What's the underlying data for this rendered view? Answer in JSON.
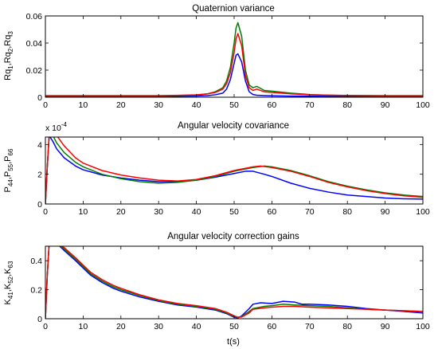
{
  "chart_data": [
    {
      "type": "line",
      "title": "Quaternion variance",
      "ylabel": "Rq1,Rq2,Rq3",
      "ylabel_parts": [
        "Rq",
        "1",
        ",Rq",
        "2",
        ",Rq",
        "3"
      ],
      "xlabel": "",
      "xlim": [
        0,
        100
      ],
      "ylim": [
        0,
        0.06
      ],
      "xticks": [
        "0",
        "10",
        "20",
        "30",
        "40",
        "50",
        "60",
        "70",
        "80",
        "90",
        "100"
      ],
      "yticks": [
        "0",
        "0.02",
        "0.04",
        "0.06"
      ],
      "ytick_values": [
        0,
        0.02,
        0.04,
        0.06
      ],
      "grid": false,
      "series": [
        {
          "color": "#0000ff",
          "x": [
            0,
            10,
            20,
            30,
            35,
            40,
            43,
            45,
            47,
            48,
            49,
            50,
            50.5,
            51,
            52,
            53,
            54,
            55,
            56,
            58,
            60,
            65,
            70,
            80,
            90,
            100
          ],
          "y": [
            0.0006,
            0.0006,
            0.0006,
            0.0006,
            0.0007,
            0.0009,
            0.0012,
            0.0018,
            0.003,
            0.006,
            0.013,
            0.025,
            0.031,
            0.032,
            0.026,
            0.012,
            0.004,
            0.002,
            0.0015,
            0.0012,
            0.001,
            0.0008,
            0.0007,
            0.0006,
            0.0006,
            0.0006
          ]
        },
        {
          "color": "#007f00",
          "x": [
            0,
            10,
            20,
            30,
            35,
            40,
            43,
            45,
            47,
            48,
            49,
            50,
            50.5,
            51,
            52,
            53,
            54,
            55,
            56,
            58,
            60,
            65,
            70,
            75,
            80,
            90,
            100
          ],
          "y": [
            0.001,
            0.001,
            0.001,
            0.001,
            0.0012,
            0.0016,
            0.0025,
            0.004,
            0.007,
            0.012,
            0.022,
            0.04,
            0.051,
            0.055,
            0.045,
            0.02,
            0.009,
            0.007,
            0.008,
            0.005,
            0.0045,
            0.003,
            0.002,
            0.0015,
            0.0012,
            0.001,
            0.001
          ]
        },
        {
          "color": "#ff0000",
          "x": [
            0,
            10,
            20,
            30,
            35,
            40,
            43,
            45,
            47,
            48,
            49,
            50,
            50.5,
            51,
            52,
            53,
            54,
            55,
            56,
            58,
            60,
            65,
            70,
            80,
            90,
            100
          ],
          "y": [
            0.0012,
            0.0012,
            0.0012,
            0.0012,
            0.0014,
            0.0018,
            0.0025,
            0.0035,
            0.006,
            0.01,
            0.018,
            0.033,
            0.043,
            0.047,
            0.038,
            0.016,
            0.007,
            0.005,
            0.006,
            0.004,
            0.0035,
            0.0025,
            0.0018,
            0.0013,
            0.0012,
            0.0012
          ]
        }
      ]
    },
    {
      "type": "line",
      "title": "Angular velocity covariance",
      "ylabel": "P44,P55,P66",
      "ylabel_parts": [
        "P",
        "44",
        ",P",
        "55",
        ",P",
        "66"
      ],
      "xlabel": "",
      "scale_label_base": "x 10",
      "scale_label_exp": "-4",
      "xlim": [
        0,
        100
      ],
      "ylim": [
        0,
        4.5
      ],
      "xticks": [
        "0",
        "10",
        "20",
        "30",
        "40",
        "50",
        "60",
        "70",
        "80",
        "90",
        "100"
      ],
      "yticks": [
        "0",
        "2",
        "4"
      ],
      "ytick_values": [
        0,
        2,
        4
      ],
      "grid": false,
      "series": [
        {
          "color": "#0000ff",
          "x": [
            0,
            0.5,
            1,
            2,
            3,
            5,
            8,
            10,
            15,
            20,
            25,
            30,
            35,
            40,
            45,
            50,
            53,
            55,
            58,
            60,
            65,
            70,
            75,
            80,
            85,
            90,
            95,
            100
          ],
          "y": [
            0,
            2.5,
            4.6,
            4.2,
            3.7,
            3.1,
            2.55,
            2.3,
            1.95,
            1.75,
            1.6,
            1.5,
            1.5,
            1.6,
            1.8,
            2.05,
            2.2,
            2.2,
            2.0,
            1.85,
            1.4,
            1.05,
            0.8,
            0.6,
            0.5,
            0.4,
            0.35,
            0.33
          ]
        },
        {
          "color": "#007f00",
          "x": [
            0,
            0.5,
            1,
            2,
            3,
            5,
            8,
            10,
            15,
            20,
            25,
            30,
            35,
            40,
            45,
            50,
            55,
            58,
            60,
            65,
            70,
            75,
            80,
            85,
            90,
            95,
            100
          ],
          "y": [
            0,
            2.5,
            4.6,
            4.6,
            4.1,
            3.45,
            2.8,
            2.5,
            2.0,
            1.7,
            1.5,
            1.4,
            1.45,
            1.6,
            1.85,
            2.2,
            2.45,
            2.55,
            2.5,
            2.25,
            1.9,
            1.5,
            1.2,
            0.95,
            0.75,
            0.6,
            0.5
          ]
        },
        {
          "color": "#ff0000",
          "x": [
            0,
            0.5,
            1,
            2,
            3,
            5,
            8,
            10,
            15,
            20,
            25,
            30,
            35,
            40,
            45,
            50,
            55,
            57,
            60,
            65,
            70,
            75,
            80,
            85,
            90,
            95,
            100
          ],
          "y": [
            0,
            2.5,
            4.6,
            4.6,
            4.6,
            3.9,
            3.1,
            2.75,
            2.25,
            1.95,
            1.75,
            1.6,
            1.55,
            1.65,
            1.9,
            2.25,
            2.5,
            2.55,
            2.45,
            2.2,
            1.85,
            1.45,
            1.15,
            0.9,
            0.7,
            0.55,
            0.45
          ]
        }
      ]
    },
    {
      "type": "line",
      "title": "Angular velocity correction gains",
      "ylabel": "K41,K52,K63",
      "ylabel_parts": [
        "K",
        "41",
        ",K",
        "52",
        ",K",
        "63"
      ],
      "xlabel": "t(s)",
      "xlim": [
        0,
        100
      ],
      "ylim": [
        0,
        0.5
      ],
      "xticks": [
        "0",
        "10",
        "20",
        "30",
        "40",
        "50",
        "60",
        "70",
        "80",
        "90",
        "100"
      ],
      "yticks": [
        "0",
        "0.2",
        "0.4"
      ],
      "ytick_values": [
        0,
        0.2,
        0.4
      ],
      "grid": false,
      "series": [
        {
          "color": "#0000ff",
          "x": [
            0,
            0.5,
            1,
            3,
            5,
            8,
            10,
            12,
            15,
            18,
            20,
            25,
            30,
            35,
            40,
            45,
            48,
            50,
            51,
            52,
            54,
            55,
            57,
            60,
            63,
            66,
            68,
            70,
            75,
            80,
            85,
            90,
            95,
            100
          ],
          "y": [
            0,
            0.3,
            0.52,
            0.52,
            0.47,
            0.4,
            0.35,
            0.3,
            0.25,
            0.21,
            0.19,
            0.15,
            0.12,
            0.095,
            0.08,
            0.06,
            0.035,
            0.01,
            0.005,
            0.02,
            0.07,
            0.1,
            0.11,
            0.105,
            0.12,
            0.115,
            0.1,
            0.1,
            0.095,
            0.085,
            0.07,
            0.06,
            0.05,
            0.04
          ]
        },
        {
          "color": "#007f00",
          "x": [
            0,
            0.5,
            1,
            3,
            5,
            8,
            10,
            12,
            15,
            18,
            20,
            25,
            30,
            35,
            40,
            45,
            48,
            50,
            51,
            52,
            54,
            55,
            58,
            60,
            63,
            66,
            70,
            75,
            80,
            85,
            90,
            95,
            100
          ],
          "y": [
            0,
            0.3,
            0.52,
            0.52,
            0.48,
            0.41,
            0.36,
            0.31,
            0.26,
            0.22,
            0.2,
            0.16,
            0.125,
            0.1,
            0.085,
            0.065,
            0.04,
            0.015,
            0.01,
            0.015,
            0.05,
            0.07,
            0.085,
            0.09,
            0.1,
            0.095,
            0.09,
            0.085,
            0.075,
            0.065,
            0.06,
            0.055,
            0.05
          ]
        },
        {
          "color": "#ff0000",
          "x": [
            0,
            0.5,
            1,
            3,
            5,
            8,
            10,
            12,
            15,
            18,
            20,
            25,
            30,
            35,
            40,
            45,
            48,
            50,
            51,
            52,
            54,
            55,
            58,
            60,
            63,
            66,
            70,
            75,
            80,
            85,
            90,
            95,
            100
          ],
          "y": [
            0,
            0.3,
            0.52,
            0.52,
            0.49,
            0.42,
            0.37,
            0.32,
            0.27,
            0.23,
            0.21,
            0.165,
            0.13,
            0.105,
            0.09,
            0.07,
            0.045,
            0.02,
            0.01,
            0.012,
            0.04,
            0.065,
            0.075,
            0.08,
            0.085,
            0.085,
            0.08,
            0.075,
            0.07,
            0.065,
            0.06,
            0.055,
            0.05
          ]
        }
      ]
    }
  ]
}
